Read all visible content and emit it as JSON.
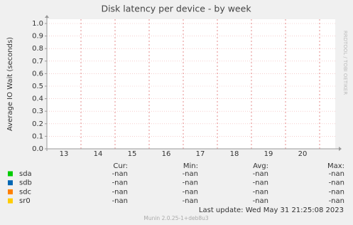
{
  "chart_data": {
    "type": "line",
    "title": "Disk latency per device - by week",
    "y_label": "Average IO Wait (seconds)",
    "side_text": "RRDTOOL / TOBI OETIKER",
    "categories": [
      "13",
      "14",
      "15",
      "16",
      "17",
      "18",
      "19",
      "20"
    ],
    "ylim": [
      0,
      1
    ],
    "yticks": [
      {
        "value": 0,
        "label": "0.0"
      },
      {
        "value": 0.1,
        "label": "0.1"
      },
      {
        "value": 0.2,
        "label": "0.2"
      },
      {
        "value": 0.3,
        "label": "0.3"
      },
      {
        "value": 0.4,
        "label": "0.4"
      },
      {
        "value": 0.5,
        "label": "0.5"
      },
      {
        "value": 0.6,
        "label": "0.6"
      },
      {
        "value": 0.7,
        "label": "0.7"
      },
      {
        "value": 0.8,
        "label": "0.8"
      },
      {
        "value": 0.9,
        "label": "0.9"
      },
      {
        "value": 1,
        "label": "1.0"
      }
    ],
    "grid": true,
    "legend_columns": [
      "Cur:",
      "Min:",
      "Avg:",
      "Max:"
    ],
    "series": [
      {
        "name": "sda",
        "color": "#00cc00",
        "stats": [
          "-nan",
          "-nan",
          "-nan",
          "-nan"
        ]
      },
      {
        "name": "sdb",
        "color": "#0066b3",
        "stats": [
          "-nan",
          "-nan",
          "-nan",
          "-nan"
        ]
      },
      {
        "name": "sdc",
        "color": "#ff8000",
        "stats": [
          "-nan",
          "-nan",
          "-nan",
          "-nan"
        ]
      },
      {
        "name": "sr0",
        "color": "#ffcc00",
        "stats": [
          "-nan",
          "-nan",
          "-nan",
          "-nan"
        ]
      }
    ],
    "last_update": "Last update:  Wed May 31 21:25:08 2023",
    "footer": "Munin 2.0.25-1+deb8u3"
  }
}
